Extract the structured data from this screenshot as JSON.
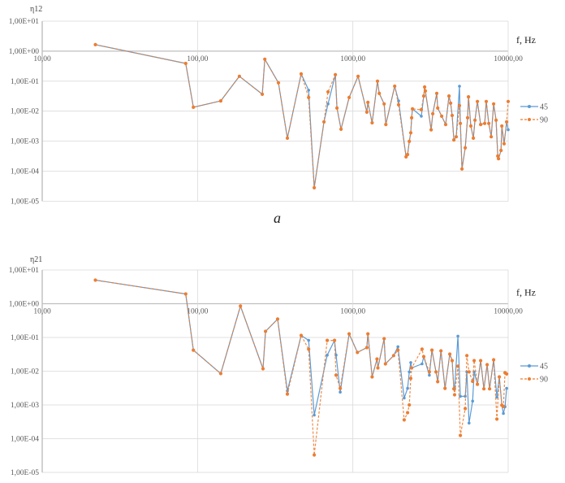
{
  "caption": "a",
  "colors": {
    "series_45": "#5b9bd5",
    "series_90": "#ed7d31",
    "grid": "#d9d9d9",
    "axis": "#bfbfbf"
  },
  "chart_data": [
    {
      "type": "line",
      "title": "",
      "ylabel": "η12",
      "xlabel": "f, Hz",
      "xscale": "log",
      "yscale": "log",
      "xlim": [
        10,
        10000
      ],
      "ylim": [
        1e-05,
        10
      ],
      "grid": true,
      "legend": "right",
      "x_tick_labels": [
        "10,00",
        "100,00",
        "1000,00",
        "10000,00"
      ],
      "y_tick_labels": [
        "1,00E+01",
        "1,00E+00",
        "1,00E-01",
        "1,00E-02",
        "1,00E-03",
        "1,00E-04",
        "1,00E-05"
      ],
      "x": [
        22,
        84,
        94,
        141,
        186,
        261,
        271,
        332,
        379,
        465,
        519,
        564,
        652,
        692,
        771,
        790,
        839,
        946,
        1080,
        1230,
        1250,
        1330,
        1440,
        1480,
        1590,
        1630,
        1860,
        1970,
        2200,
        2250,
        2310,
        2360,
        2390,
        2420,
        2760,
        2860,
        2900,
        2930,
        3190,
        3270,
        3470,
        3520,
        3730,
        3960,
        4160,
        4260,
        4360,
        4470,
        4630,
        4860,
        4920,
        5040,
        5290,
        5480,
        5550,
        5750,
        5970,
        6110,
        6340,
        6650,
        7060,
        7230,
        7500,
        7780,
        8060,
        8360,
        8570,
        8670,
        8990,
        9100,
        9420,
        9770,
        10000
      ],
      "series": [
        {
          "name": "45",
          "style": "solid",
          "values": [
            1.65,
            0.39,
            0.0135,
            0.022,
            0.145,
            0.0366,
            0.54,
            0.088,
            0.00126,
            0.174,
            0.05,
            2.8e-05,
            0.0044,
            0.0174,
            0.164,
            0.0127,
            0.0025,
            0.0285,
            0.145,
            0.0093,
            0.0196,
            0.0041,
            0.1,
            0.039,
            0.0174,
            0.0036,
            0.068,
            0.022,
            0.0003,
            0.00036,
            0.00098,
            0.0019,
            0.006,
            0.0119,
            0.0068,
            0.032,
            0.064,
            0.047,
            0.0024,
            0.0082,
            0.039,
            0.0127,
            0.0068,
            0.0036,
            0.032,
            0.0184,
            0.0072,
            0.0011,
            0.0014,
            0.068,
            0.0039,
            0.000118,
            0.0006,
            0.006,
            0.03,
            0.0032,
            0.00126,
            0.005,
            0.021,
            0.0036,
            0.0039,
            0.021,
            0.0039,
            0.0014,
            0.0174,
            0.005,
            0.00032,
            0.00026,
            0.00049,
            0.0032,
            0.00082,
            0.0044,
            0.0024
          ]
        },
        {
          "name": "90",
          "style": "dashed",
          "values": [
            1.65,
            0.39,
            0.0135,
            0.022,
            0.145,
            0.0366,
            0.54,
            0.088,
            0.00126,
            0.174,
            0.0285,
            2.8e-05,
            0.0044,
            0.044,
            0.164,
            0.0127,
            0.0025,
            0.0285,
            0.145,
            0.0093,
            0.0196,
            0.0041,
            0.1,
            0.039,
            0.0174,
            0.0036,
            0.068,
            0.0163,
            0.0003,
            0.00036,
            0.00098,
            0.0019,
            0.006,
            0.0119,
            0.0112,
            0.032,
            0.064,
            0.047,
            0.0024,
            0.0082,
            0.039,
            0.0127,
            0.0068,
            0.0036,
            0.032,
            0.0184,
            0.0072,
            0.0011,
            0.0014,
            0.0153,
            0.0039,
            0.000118,
            0.0006,
            0.006,
            0.03,
            0.0032,
            0.00126,
            0.005,
            0.021,
            0.0036,
            0.0039,
            0.021,
            0.0039,
            0.0014,
            0.0174,
            0.005,
            0.00032,
            0.00026,
            0.00049,
            0.0032,
            0.00082,
            0.0044,
            0.021
          ]
        }
      ]
    },
    {
      "type": "line",
      "title": "",
      "ylabel": "η21",
      "xlabel": "f, Hz",
      "xscale": "log",
      "yscale": "log",
      "xlim": [
        10,
        10000
      ],
      "ylim": [
        1e-05,
        10
      ],
      "grid": true,
      "legend": "right",
      "x_tick_labels": [
        "10,00",
        "100,00",
        "1000,00",
        "10000,00"
      ],
      "y_tick_labels": [
        "1,00E+01",
        "1,00E+00",
        "1,00E-01",
        "1,00E-02",
        "1,00E-03",
        "1,00E-04",
        "1,00E-05"
      ],
      "x": [
        22,
        84,
        94,
        141,
        189,
        264,
        274,
        328,
        379,
        465,
        519,
        564,
        684,
        762,
        780,
        829,
        946,
        1070,
        1230,
        1250,
        1330,
        1430,
        1450,
        1590,
        1620,
        1830,
        1950,
        2140,
        2250,
        2310,
        2360,
        2390,
        2790,
        2860,
        3110,
        3230,
        3430,
        3520,
        3690,
        3920,
        4210,
        4360,
        4470,
        4520,
        4750,
        4920,
        5290,
        5420,
        5600,
        5900,
        6040,
        6340,
        6650,
        6980,
        7320,
        7590,
        8060,
        8460,
        8770,
        9100,
        9310,
        9540,
        9770
      ],
      "series": [
        {
          "name": "45",
          "style": "solid",
          "values": [
            5.0,
            1.95,
            0.042,
            0.0085,
            0.85,
            0.0118,
            0.152,
            0.35,
            0.0026,
            0.115,
            0.082,
            0.0005,
            0.03,
            0.082,
            0.03,
            0.0024,
            0.128,
            0.036,
            0.05,
            0.128,
            0.0068,
            0.023,
            0.0125,
            0.092,
            0.0165,
            0.029,
            0.053,
            0.0016,
            0.0031,
            0.0095,
            0.018,
            0.0125,
            0.0165,
            0.027,
            0.0076,
            0.042,
            0.0095,
            0.0049,
            0.04,
            0.0031,
            0.032,
            0.0206,
            0.003,
            0.003,
            0.109,
            0.0018,
            0.0018,
            0.0095,
            0.00029,
            0.0013,
            0.0095,
            0.0041,
            0.0206,
            0.003,
            0.0156,
            0.003,
            0.0217,
            0.0017,
            0.0068,
            0.00098,
            0.00056,
            0.00088,
            0.0031
          ]
        },
        {
          "name": "90",
          "style": "dashed",
          "values": [
            5.0,
            1.95,
            0.042,
            0.0085,
            0.85,
            0.0118,
            0.152,
            0.35,
            0.0021,
            0.115,
            0.045,
            3.3e-05,
            0.082,
            0.082,
            0.0076,
            0.0031,
            0.128,
            0.036,
            0.05,
            0.128,
            0.0068,
            0.023,
            0.0125,
            0.092,
            0.0165,
            0.029,
            0.042,
            0.00036,
            0.00059,
            0.001,
            0.0061,
            0.0125,
            0.045,
            0.027,
            0.0095,
            0.042,
            0.0095,
            0.0049,
            0.04,
            0.0031,
            0.032,
            0.0206,
            0.003,
            0.002,
            0.014,
            0.000125,
            0.00078,
            0.029,
            0.0095,
            0.005,
            0.0206,
            0.0041,
            0.0206,
            0.003,
            0.0156,
            0.003,
            0.0217,
            0.00038,
            0.0068,
            0.00098,
            0.0009,
            0.009,
            0.0083
          ]
        }
      ]
    }
  ]
}
